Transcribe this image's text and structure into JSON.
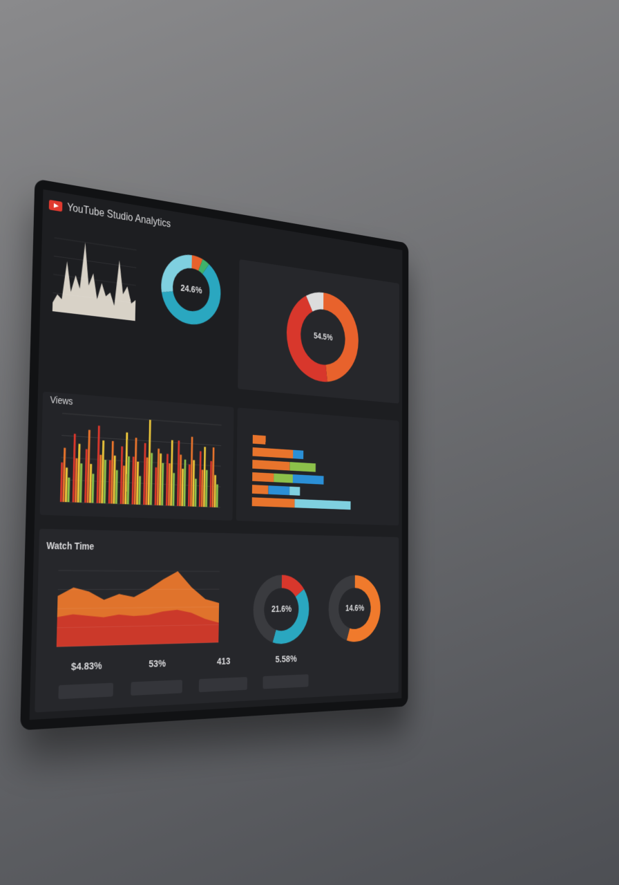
{
  "header": {
    "title": "YouTube Studio Analytics"
  },
  "stats": [
    "$4.83%",
    "53%",
    "413",
    "5.58%"
  ],
  "chart_data": [
    {
      "type": "area",
      "series": [
        {
          "color": "#e8e2d6",
          "values": [
            10,
            20,
            15,
            60,
            25,
            45,
            30,
            85,
            35,
            50,
            20,
            40,
            25,
            30,
            15,
            70,
            30,
            40,
            20,
            25
          ]
        }
      ]
    },
    {
      "type": "donut",
      "center_label": "24.6%",
      "values": [
        6,
        4,
        62,
        28
      ],
      "colors": [
        "#e8622c",
        "#3fb26b",
        "#2aa7c0",
        "#7fd0e0"
      ]
    },
    {
      "type": "donut",
      "center_label": "54.5%",
      "values": [
        48,
        44,
        8
      ],
      "colors": [
        "#e8622c",
        "#d8372c",
        "#dcdcdc"
      ]
    },
    {
      "type": "bar",
      "title": "Views",
      "series": [
        {
          "color": "#d8372c",
          "values": [
            40,
            70,
            55,
            80,
            45,
            60,
            50,
            65,
            40,
            55,
            70,
            45,
            60,
            50
          ]
        },
        {
          "color": "#e8742c",
          "values": [
            55,
            45,
            75,
            50,
            65,
            40,
            70,
            50,
            60,
            45,
            55,
            75,
            40,
            65
          ]
        },
        {
          "color": "#e9c43a",
          "values": [
            35,
            60,
            40,
            65,
            50,
            75,
            45,
            90,
            55,
            70,
            40,
            50,
            65,
            35
          ]
        },
        {
          "color": "#8cc04a",
          "values": [
            25,
            40,
            30,
            45,
            35,
            50,
            30,
            55,
            45,
            35,
            50,
            30,
            40,
            25
          ]
        }
      ]
    },
    {
      "type": "hbar",
      "series": [
        {
          "color": "#e8742c",
          "values": [
            12,
            38,
            35,
            20,
            15,
            40
          ]
        },
        {
          "color": "#8cc04a",
          "values": [
            0,
            0,
            25,
            18,
            0,
            0
          ]
        },
        {
          "color": "#2b8fd6",
          "values": [
            0,
            10,
            0,
            30,
            20,
            0
          ]
        },
        {
          "color": "#7fd0e0",
          "values": [
            0,
            0,
            0,
            0,
            10,
            55
          ]
        }
      ]
    },
    {
      "type": "area",
      "title": "Watch Time",
      "series": [
        {
          "color": "#f07a2c",
          "values": [
            60,
            70,
            65,
            55,
            62,
            58,
            68,
            80,
            90,
            70,
            55,
            50
          ]
        },
        {
          "color": "#c9342a",
          "values": [
            35,
            38,
            36,
            34,
            37,
            35,
            36,
            40,
            42,
            38,
            30,
            25
          ]
        }
      ]
    },
    {
      "type": "donut",
      "center_label": "21.6%",
      "values": [
        15,
        40,
        45
      ],
      "colors": [
        "#d8372c",
        "#2aa7c0",
        "#3a3b3f"
      ]
    },
    {
      "type": "donut",
      "center_label": "14.6%",
      "values": [
        55,
        45
      ],
      "colors": [
        "#f07a2c",
        "#3a3b3f"
      ]
    }
  ]
}
